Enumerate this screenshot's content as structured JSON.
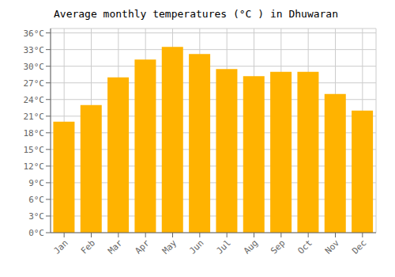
{
  "chart_data": {
    "type": "bar",
    "title": "Average monthly temperatures (°C ) in Dhuwaran",
    "categories": [
      "Jan",
      "Feb",
      "Mar",
      "Apr",
      "May",
      "Jun",
      "Jul",
      "Aug",
      "Sep",
      "Oct",
      "Nov",
      "Dec"
    ],
    "values": [
      20.0,
      23.0,
      28.0,
      31.2,
      33.5,
      32.2,
      29.5,
      28.2,
      29.0,
      29.0,
      25.0,
      22.0
    ],
    "color": "#FFB300",
    "ylim": [
      0,
      36.8
    ],
    "yticks": [
      {
        "value": 0,
        "label": "0°C"
      },
      {
        "value": 3,
        "label": "3°C"
      },
      {
        "value": 6,
        "label": "6°C"
      },
      {
        "value": 9,
        "label": "9°C"
      },
      {
        "value": 12,
        "label": "12°C"
      },
      {
        "value": 15,
        "label": "15°C"
      },
      {
        "value": 18,
        "label": "18°C"
      },
      {
        "value": 21,
        "label": "21°C"
      },
      {
        "value": 24,
        "label": "24°C"
      },
      {
        "value": 27,
        "label": "27°C"
      },
      {
        "value": 30,
        "label": "30°C"
      },
      {
        "value": 33,
        "label": "33°C"
      },
      {
        "value": 36,
        "label": "36°C"
      }
    ],
    "grid": true
  }
}
